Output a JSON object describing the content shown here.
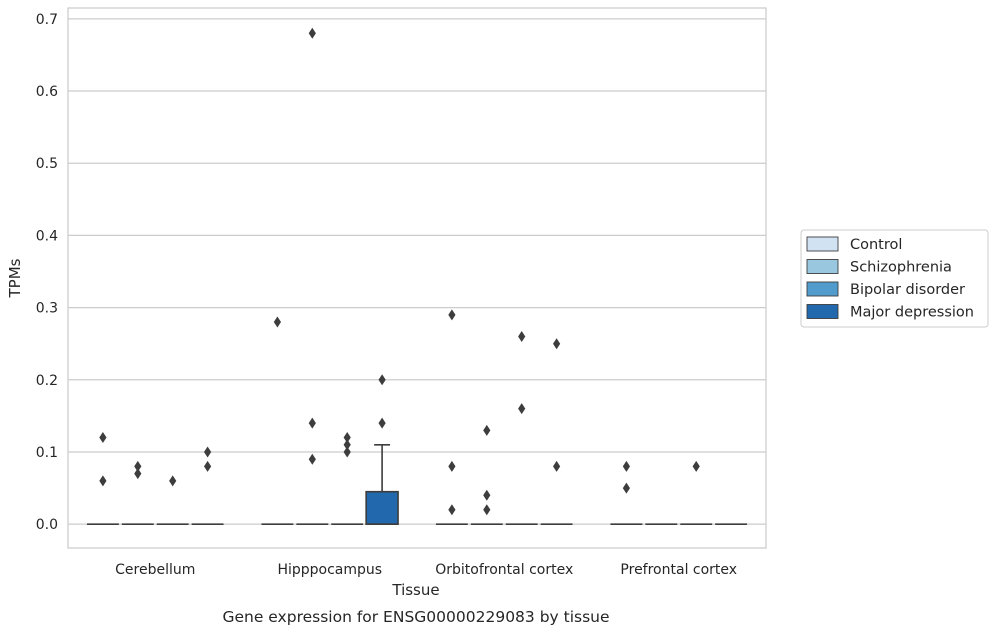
{
  "chart_data": {
    "type": "box",
    "caption": "Gene expression for ENSG00000229083 by tissue",
    "xlabel": "Tissue",
    "ylabel": "TPMs",
    "ylim": [
      -0.033,
      0.715
    ],
    "yticks": [
      "0.0",
      "0.1",
      "0.2",
      "0.3",
      "0.4",
      "0.5",
      "0.6",
      "0.7"
    ],
    "ytick_values": [
      0,
      0.1,
      0.2,
      0.3,
      0.4,
      0.5,
      0.6,
      0.7
    ],
    "grid": "horizontal",
    "legend_position": "right",
    "categories": [
      "Cerebellum",
      "Hipppocampus",
      "Orbitofrontal cortex",
      "Prefrontal cortex"
    ],
    "series": [
      {
        "name": "Control",
        "color": "#d1e2f2"
      },
      {
        "name": "Schizophrenia",
        "color": "#9ac7e0"
      },
      {
        "name": "Bipolar disorder",
        "color": "#519ccc"
      },
      {
        "name": "Major depression",
        "color": "#2268ad"
      }
    ],
    "boxes": [
      {
        "category": "Cerebellum",
        "series": "Control",
        "min": 0,
        "q1": 0,
        "median": 0,
        "q3": 0,
        "max": 0
      },
      {
        "category": "Cerebellum",
        "series": "Schizophrenia",
        "min": 0,
        "q1": 0,
        "median": 0,
        "q3": 0,
        "max": 0
      },
      {
        "category": "Cerebellum",
        "series": "Bipolar disorder",
        "min": 0,
        "q1": 0,
        "median": 0,
        "q3": 0,
        "max": 0
      },
      {
        "category": "Cerebellum",
        "series": "Major depression",
        "min": 0,
        "q1": 0,
        "median": 0,
        "q3": 0,
        "max": 0
      },
      {
        "category": "Hipppocampus",
        "series": "Control",
        "min": 0,
        "q1": 0,
        "median": 0,
        "q3": 0,
        "max": 0
      },
      {
        "category": "Hipppocampus",
        "series": "Schizophrenia",
        "min": 0,
        "q1": 0,
        "median": 0,
        "q3": 0,
        "max": 0
      },
      {
        "category": "Hipppocampus",
        "series": "Bipolar disorder",
        "min": 0,
        "q1": 0,
        "median": 0,
        "q3": 0,
        "max": 0
      },
      {
        "category": "Hipppocampus",
        "series": "Major depression",
        "min": 0,
        "q1": 0,
        "median": 0,
        "q3": 0.045,
        "max": 0.11
      },
      {
        "category": "Orbitofrontal cortex",
        "series": "Control",
        "min": 0,
        "q1": 0,
        "median": 0,
        "q3": 0,
        "max": 0
      },
      {
        "category": "Orbitofrontal cortex",
        "series": "Schizophrenia",
        "min": 0,
        "q1": 0,
        "median": 0,
        "q3": 0,
        "max": 0
      },
      {
        "category": "Orbitofrontal cortex",
        "series": "Bipolar disorder",
        "min": 0,
        "q1": 0,
        "median": 0,
        "q3": 0,
        "max": 0
      },
      {
        "category": "Orbitofrontal cortex",
        "series": "Major depression",
        "min": 0,
        "q1": 0,
        "median": 0,
        "q3": 0,
        "max": 0
      },
      {
        "category": "Prefrontal cortex",
        "series": "Control",
        "min": 0,
        "q1": 0,
        "median": 0,
        "q3": 0,
        "max": 0
      },
      {
        "category": "Prefrontal cortex",
        "series": "Schizophrenia",
        "min": 0,
        "q1": 0,
        "median": 0,
        "q3": 0,
        "max": 0
      },
      {
        "category": "Prefrontal cortex",
        "series": "Bipolar disorder",
        "min": 0,
        "q1": 0,
        "median": 0,
        "q3": 0,
        "max": 0
      },
      {
        "category": "Prefrontal cortex",
        "series": "Major depression",
        "min": 0,
        "q1": 0,
        "median": 0,
        "q3": 0,
        "max": 0
      }
    ],
    "outliers": [
      {
        "category": "Cerebellum",
        "series": "Control",
        "values": [
          0.12,
          0.06
        ]
      },
      {
        "category": "Cerebellum",
        "series": "Schizophrenia",
        "values": [
          0.08,
          0.07
        ]
      },
      {
        "category": "Cerebellum",
        "series": "Bipolar disorder",
        "values": [
          0.06
        ]
      },
      {
        "category": "Cerebellum",
        "series": "Major depression",
        "values": [
          0.1,
          0.08
        ]
      },
      {
        "category": "Hipppocampus",
        "series": "Control",
        "values": [
          0.28
        ]
      },
      {
        "category": "Hipppocampus",
        "series": "Schizophrenia",
        "values": [
          0.68,
          0.14,
          0.09
        ]
      },
      {
        "category": "Hipppocampus",
        "series": "Bipolar disorder",
        "values": [
          0.12,
          0.11,
          0.1
        ]
      },
      {
        "category": "Hipppocampus",
        "series": "Major depression",
        "values": [
          0.2,
          0.14
        ]
      },
      {
        "category": "Orbitofrontal cortex",
        "series": "Control",
        "values": [
          0.29,
          0.08,
          0.02
        ]
      },
      {
        "category": "Orbitofrontal cortex",
        "series": "Schizophrenia",
        "values": [
          0.13,
          0.04,
          0.02
        ]
      },
      {
        "category": "Orbitofrontal cortex",
        "series": "Bipolar disorder",
        "values": [
          0.26,
          0.16
        ]
      },
      {
        "category": "Orbitofrontal cortex",
        "series": "Major depression",
        "values": [
          0.25,
          0.08
        ]
      },
      {
        "category": "Prefrontal cortex",
        "series": "Control",
        "values": [
          0.08,
          0.05
        ]
      },
      {
        "category": "Prefrontal cortex",
        "series": "Bipolar disorder",
        "values": [
          0.08
        ]
      }
    ]
  }
}
